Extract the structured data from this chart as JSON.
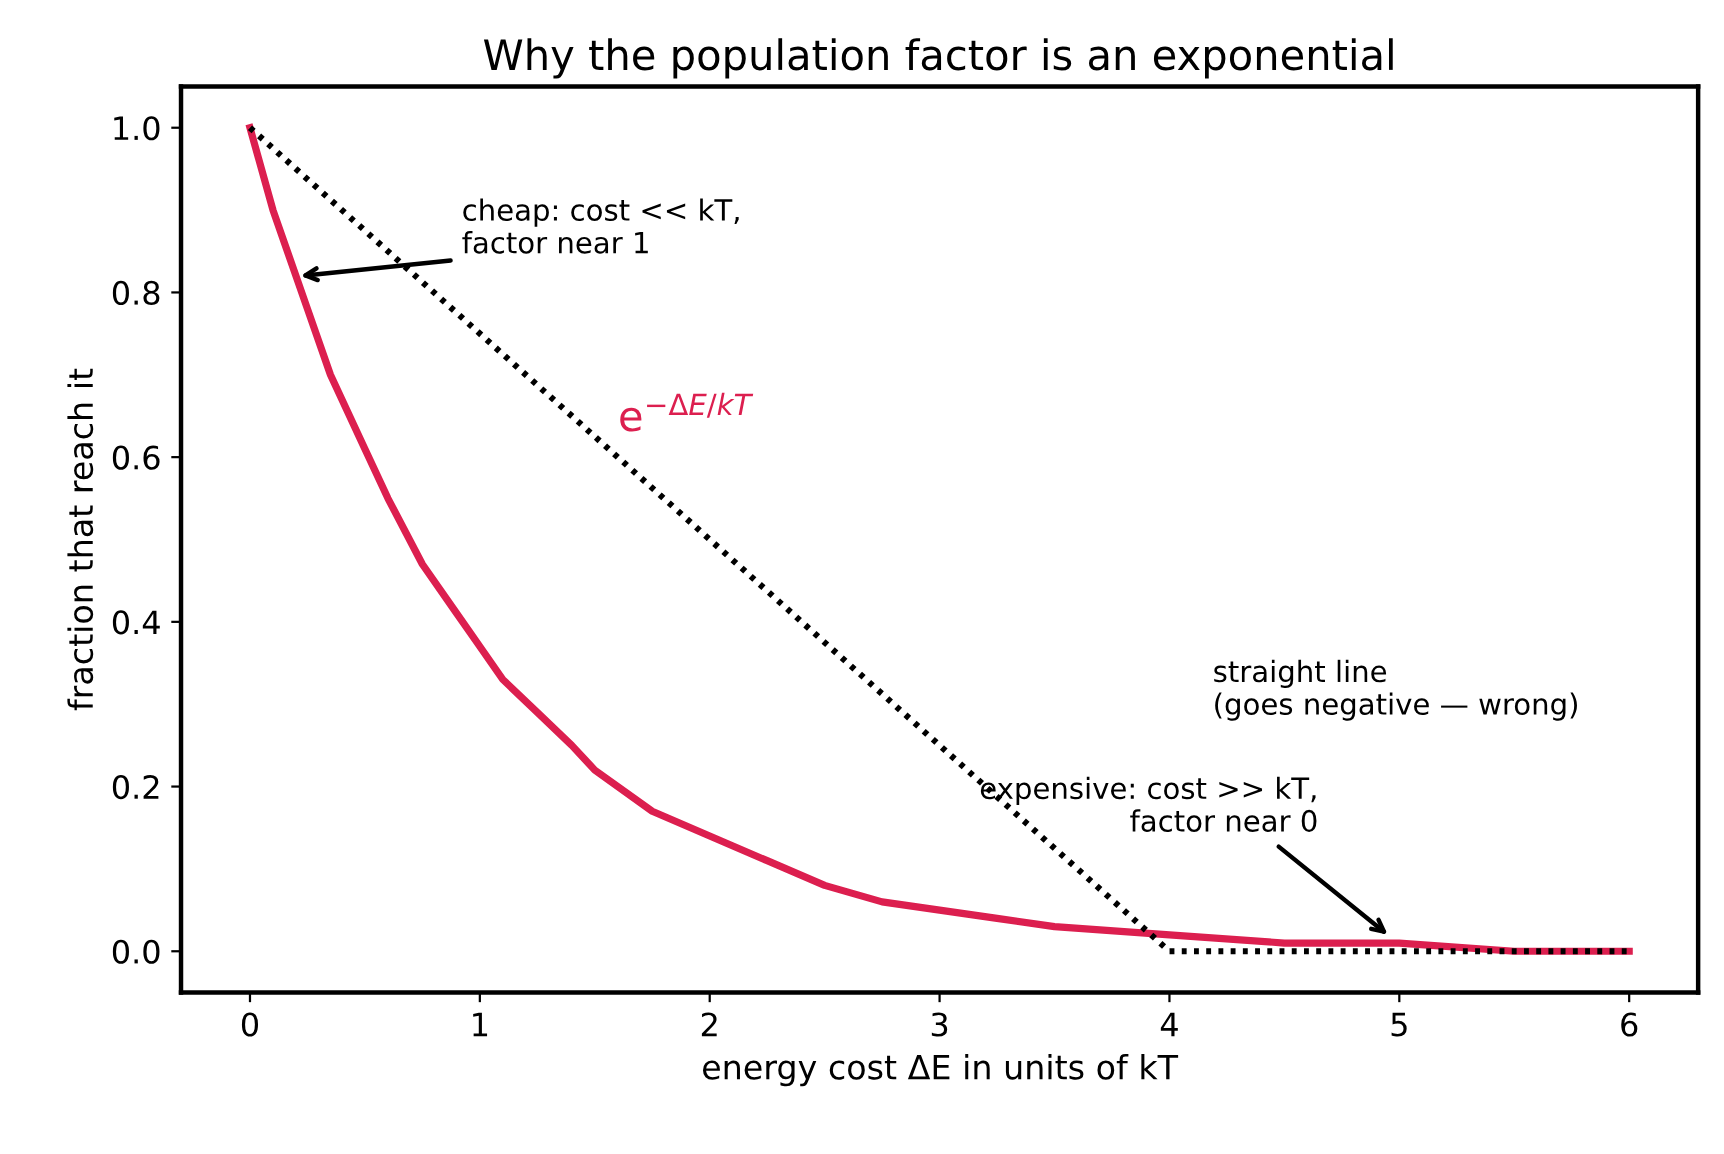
{
  "chart_data": {
    "type": "line",
    "title": "Why the population factor is an exponential",
    "xlabel": "energy cost ΔE in units of kT",
    "ylabel": "fraction that reach it",
    "series": [
      {
        "name": "e$^{−ΔE/kT}$",
        "color": "#dc1f4f",
        "line_style": "solid",
        "x": [
          0,
          0.1,
          0.25,
          0.35,
          0.5,
          0.6,
          0.75,
          0.9,
          1,
          1.1,
          1.25,
          1.4,
          1.5,
          1.75,
          2,
          2.25,
          2.5,
          2.75,
          3,
          3.25,
          3.5,
          4,
          4.5,
          5,
          5.5,
          6
        ],
        "values": [
          1,
          0.9,
          0.78,
          0.7,
          0.61,
          0.55,
          0.47,
          0.41,
          0.37,
          0.33,
          0.29,
          0.25,
          0.22,
          0.17,
          0.14,
          0.11,
          0.08,
          0.06,
          0.05,
          0.04,
          0.03,
          0.02,
          0.01,
          0.01,
          0.0,
          0.0
        ]
      },
      {
        "name": "straight line\n(goes negative — wrong)",
        "color": "#000000",
        "line_style": "dotted",
        "x": [
          0,
          4,
          6
        ],
        "values": [
          1,
          0,
          0
        ]
      }
    ],
    "annotations": [
      {
        "text": "cheap: cost << kT,\nfactor near 1",
        "x": 0.22,
        "y": 0.82
      },
      {
        "text": "expensive: cost >> kT,\nfactor near 0",
        "x": 4.95,
        "y": 0.02
      }
    ],
    "xlim": [
      -0.3,
      6.3
    ],
    "ylim": [
      -0.05,
      1.05
    ],
    "xticks": [
      0,
      1,
      2,
      3,
      4,
      5,
      6
    ],
    "yticks": [
      {
        "value": 0,
        "label": "0.0"
      },
      {
        "value": 0.2,
        "label": "0.2"
      },
      {
        "value": 0.4,
        "label": "0.4"
      },
      {
        "value": 0.6,
        "label": "0.6"
      },
      {
        "value": 0.8,
        "label": "0.8"
      },
      {
        "value": 1,
        "label": "1.0"
      }
    ],
    "grid": false,
    "legend": false
  }
}
